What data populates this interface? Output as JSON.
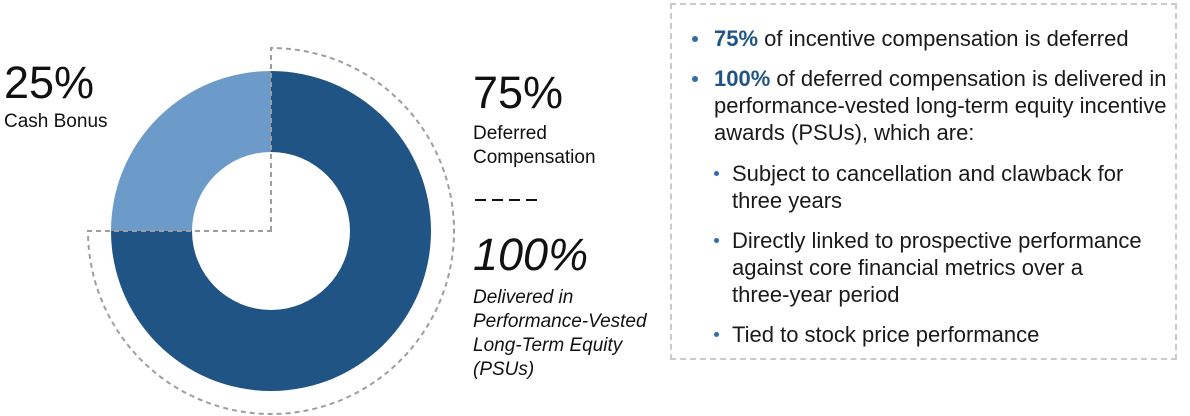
{
  "accent_colors": {
    "dark_blue": "#1F5484",
    "light_blue": "#6D9BC9",
    "bullet_blue": "#2E6DA8",
    "guide_gray": "#9B9EA3",
    "box_border_gray": "#C8CAD0",
    "text_black": "#111111"
  },
  "chart_data": {
    "type": "pie",
    "donut": true,
    "title": "",
    "start_angle_deg": 0,
    "direction": "clockwise",
    "slices": [
      {
        "label": "Deferred Compensation",
        "value": 75,
        "color": "#1F5484",
        "dashed_outline": true
      },
      {
        "label": "Cash Bonus",
        "value": 25,
        "color": "#6D9BC9",
        "dashed_outline": false
      }
    ]
  },
  "labels": {
    "cash_bonus": {
      "value": "25%",
      "label": "Cash Bonus"
    },
    "deferred": {
      "value": "75%",
      "label": "Deferred\nCompensation"
    },
    "psu": {
      "value": "100%",
      "label": "Delivered in\nPerformance-Vested\nLong-Term Equity\n(PSUs)"
    }
  },
  "info_box": {
    "bullets": [
      {
        "highlight": "75%",
        "text": " of incentive compensation is deferred"
      },
      {
        "highlight": "100%",
        "text": " of deferred compensation is delivered in\nperformance-vested long-term equity incentive\nawards (PSUs), which are:"
      }
    ],
    "sub_bullets": [
      "Subject to cancellation and clawback for\nthree years",
      "Directly linked to prospective performance\nagainst core financial metrics over a\nthree-year period",
      "Tied to stock price performance"
    ]
  }
}
